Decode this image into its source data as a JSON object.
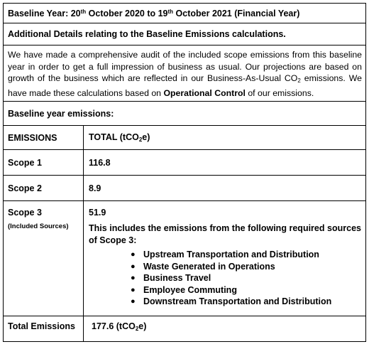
{
  "baseline_row": {
    "prefix": "Baseline Year: 20",
    "sup1": "th",
    "middle": " October 2020 to 19",
    "sup2": "th",
    "suffix": " October 2021 (Financial Year)"
  },
  "additional_details_heading": "Additional Details relating to the Baseline Emissions calculations.",
  "audit_paragraph": {
    "part1": "We have made a comprehensive audit of the included scope emissions from this baseline year in order to get a full impression of business as usual. Our projections are based on growth of the business which are reflected in our Business-As-Usual CO",
    "sub": "2",
    "part2": " emissions. We have made these calculations based on ",
    "bold": "Operational Control",
    "part3": " of our emissions."
  },
  "baseline_emissions_heading": "Baseline year emissions:",
  "table": {
    "header_left": "EMISSIONS",
    "header_right_prefix": "TOTAL (tCO",
    "header_right_sub": "2",
    "header_right_suffix": "e)",
    "scope1_label": "Scope 1",
    "scope1_value": "116.8",
    "scope2_label": "Scope 2",
    "scope2_value": "8.9",
    "scope3_label": "Scope 3",
    "scope3_note": "(Included Sources)",
    "scope3_value": "51.9",
    "scope3_description": "This includes the emissions from the following required sources of Scope 3:",
    "scope3_sources": [
      "Upstream Transportation and Distribution",
      "Waste Generated in Operations",
      "Business Travel",
      "Employee Commuting",
      "Downstream Transportation and Distribution"
    ],
    "total_label": "Total Emissions",
    "total_value_prefix": "177.6 (tCO",
    "total_value_sub": "2",
    "total_value_suffix": "e)"
  },
  "bullet_glyph": "●"
}
